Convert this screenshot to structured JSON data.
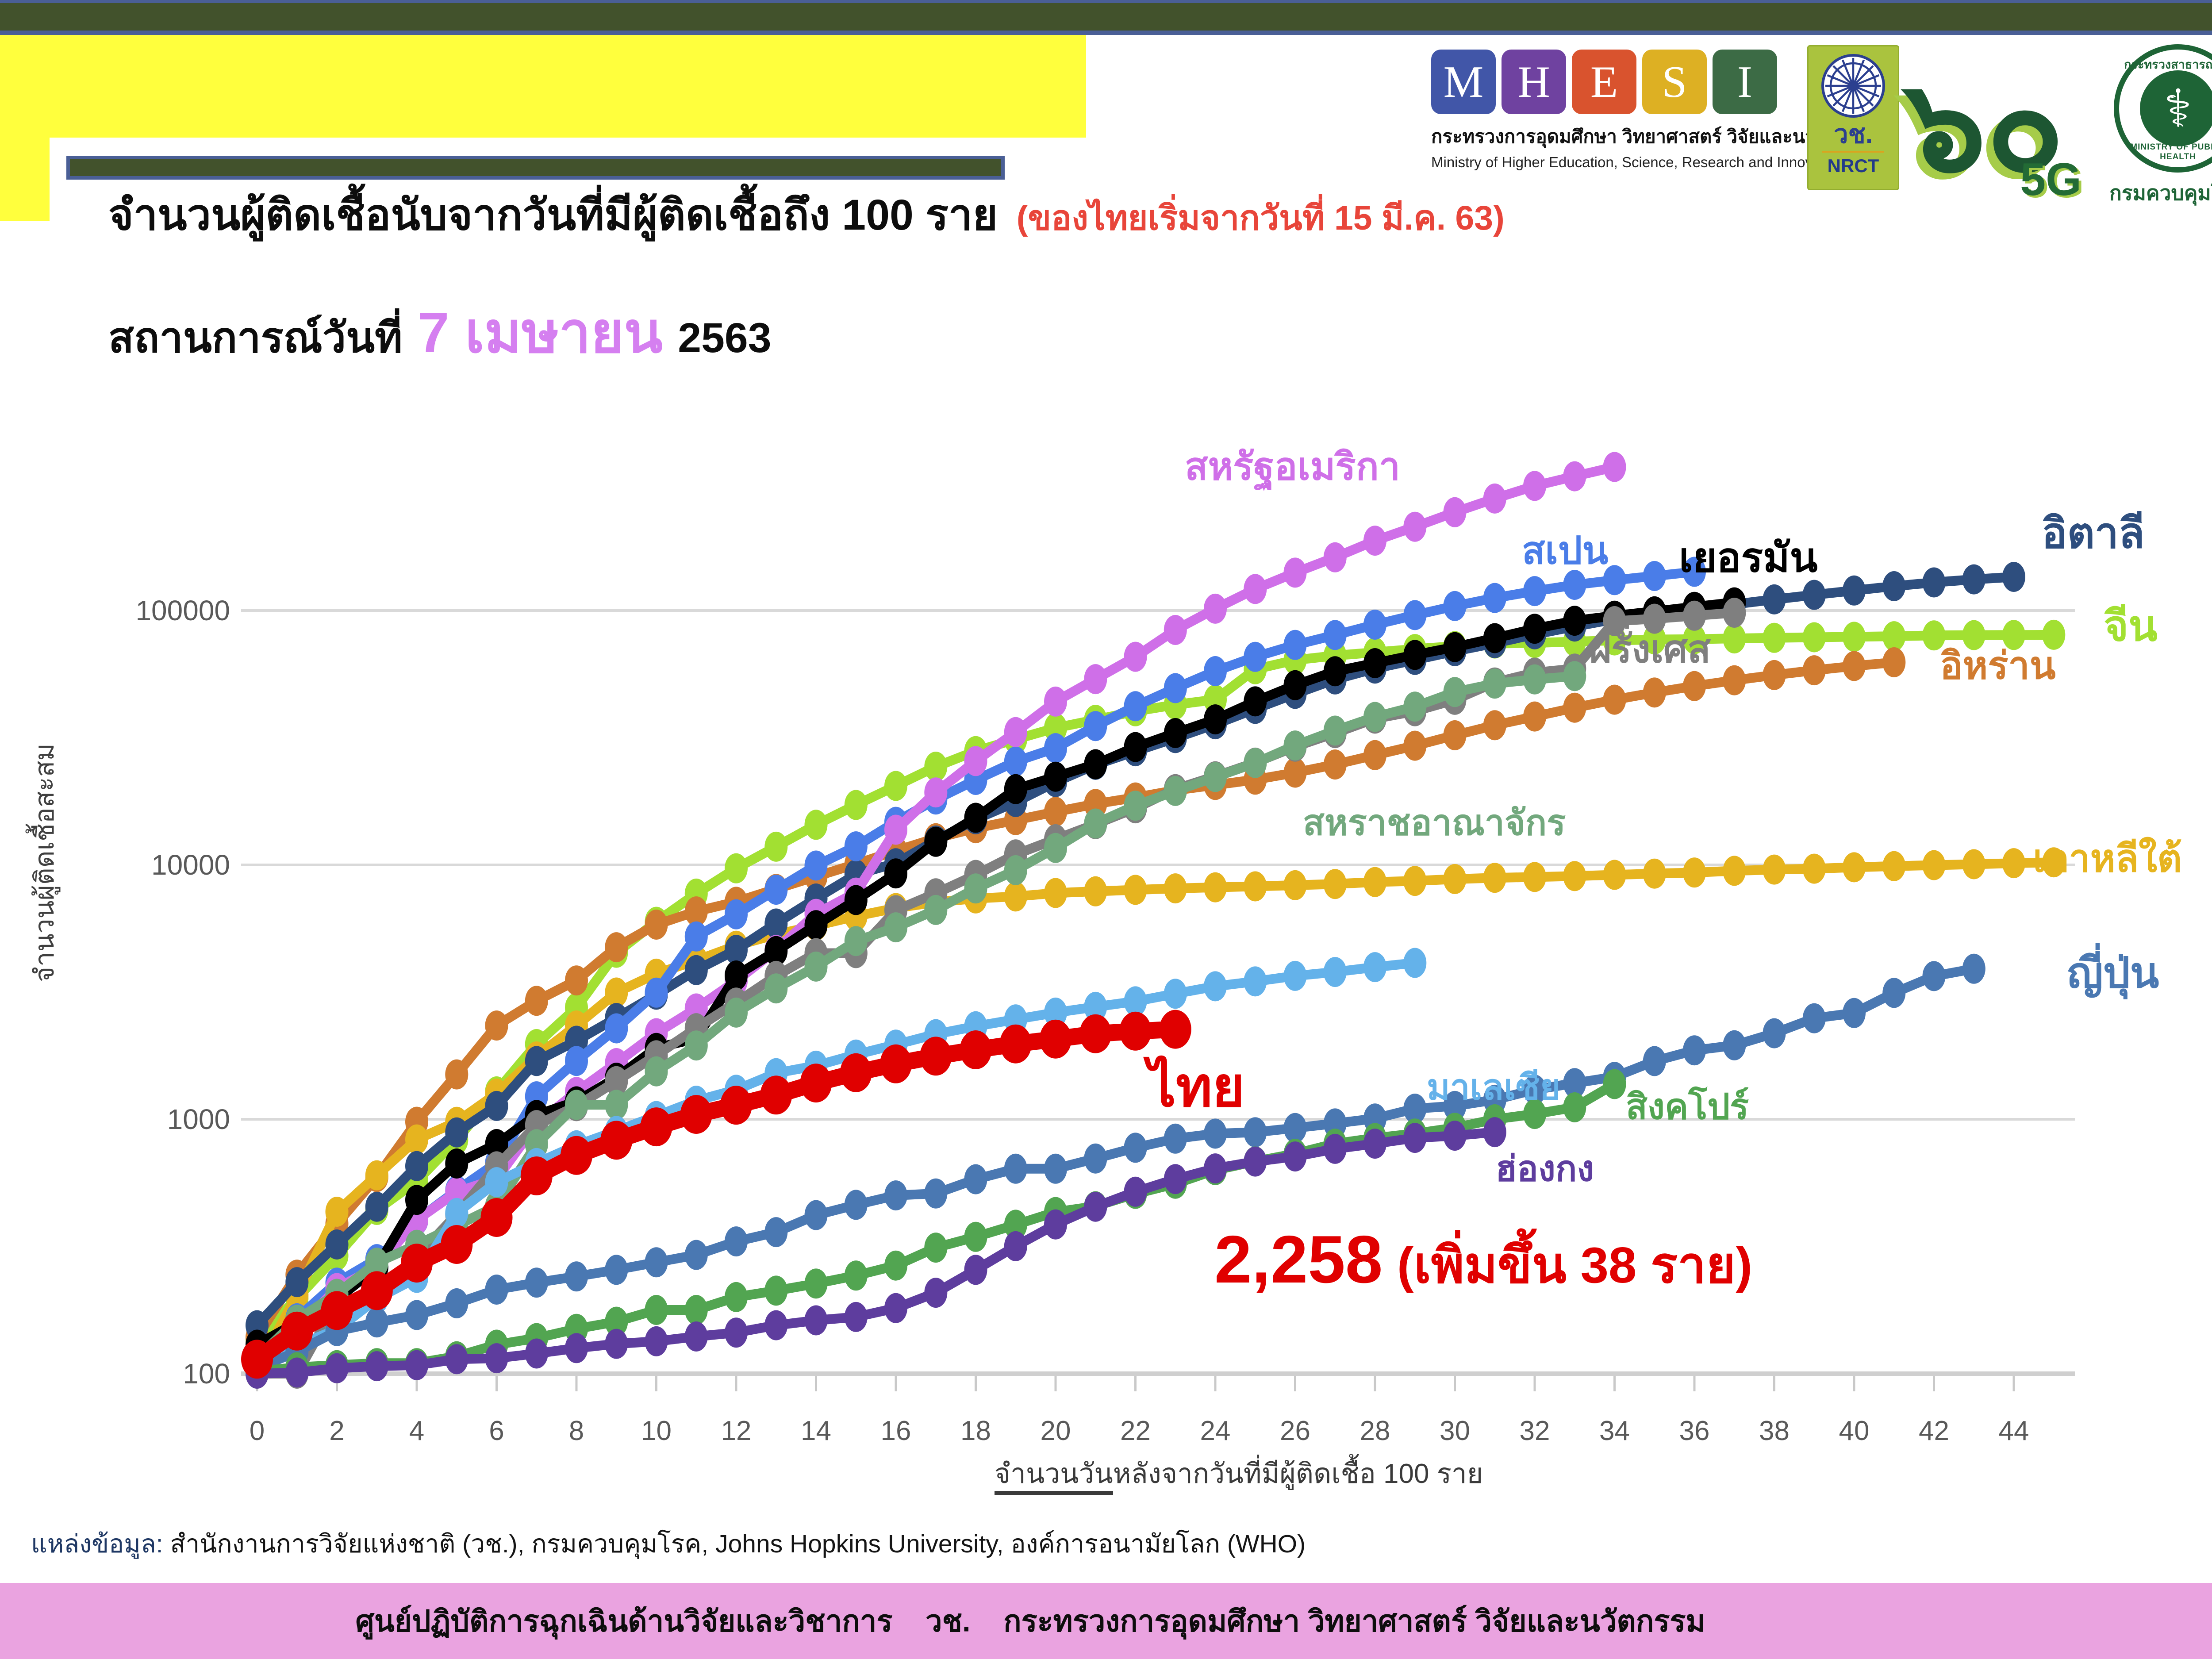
{
  "header": {
    "title": "จำนวนผู้ติดเชื้อนับจากวันที่มีผู้ติดเชื้อถึง 100 ราย",
    "title_note": "(ของไทยเริ่มจากวันที่ 15 มี.ค. 63)",
    "subtitle_prefix": "สถานการณ์วันที่",
    "subtitle_date": "7 เมษายน",
    "subtitle_year": "2563"
  },
  "logos": {
    "mhesi": {
      "letters": [
        {
          "ch": "M",
          "color": "#4156a8"
        },
        {
          "ch": "H",
          "color": "#6f42a0"
        },
        {
          "ch": "E",
          "color": "#d9532e"
        },
        {
          "ch": "S",
          "color": "#ddb023"
        },
        {
          "ch": "I",
          "color": "#3c6b45"
        }
      ],
      "line1": "กระทรวงการอุดมศึกษา วิทยาศาสตร์ วิจัยและนวัตกรรม",
      "line2": "Ministry of Higher Education, Science, Research and Innovation"
    },
    "nrct": {
      "abbr_th": "วช.",
      "abbr_en": "NRCT"
    },
    "logo60": {
      "numerals": "๖๐",
      "sub": "5G"
    },
    "moph": {
      "top": "กระทรวงสาธารณสุข",
      "symbol": "⚕",
      "bottom": "MINISTRY OF PUBLIC HEALTH",
      "dept": "กรมควบคุมโรค"
    }
  },
  "chart_data": {
    "type": "line",
    "y_scale": "log",
    "grid": true,
    "ylabel": "จำนวนผู้ติดเชื้อสะสม",
    "xlabel_underlined": "จำนวนวัน",
    "xlabel_rest": "หลังจากวันที่มีผู้ติดเชื้อ 100 ราย",
    "y_ticks": [
      100,
      1000,
      10000,
      100000
    ],
    "x_ticks": [
      0,
      2,
      4,
      6,
      8,
      10,
      12,
      14,
      16,
      18,
      20,
      22,
      24,
      26,
      28,
      30,
      32,
      34,
      36,
      38,
      40,
      42,
      44
    ],
    "x_range": [
      0,
      45.6
    ],
    "y_range": [
      100,
      450000
    ],
    "annotation": {
      "value": "2,258",
      "note": "(เพิ่มขึ้น 38 ราย)"
    },
    "series": [
      {
        "key": "china",
        "name": "จีน",
        "color": "#a2e032",
        "label_x": 4755,
        "label_y": 1368,
        "label_size": 96,
        "start_day": 0,
        "values": [
          136,
          198,
          291,
          440,
          571,
          830,
          1287,
          1975,
          2744,
          4515,
          5974,
          7711,
          9692,
          11791,
          14380,
          17205,
          20438,
          24324,
          28018,
          31161,
          34546,
          37198,
          40171,
          42638,
          44653,
          58761,
          63851,
          66492,
          68500,
          70548,
          72436,
          74185,
          74576,
          75465,
          76288,
          76936,
          77150,
          77658,
          78064,
          78497,
          78824,
          79251,
          79824,
          80026,
          80151,
          80270
        ]
      },
      {
        "key": "iran",
        "name": "อิหร่าน",
        "color": "#d07b30",
        "label_x": 4385,
        "label_y": 1462,
        "label_size": 86,
        "start_day": 0,
        "values": [
          139,
          245,
          388,
          593,
          978,
          1501,
          2336,
          2922,
          3513,
          4747,
          5823,
          6566,
          7161,
          8042,
          9000,
          10075,
          11364,
          12729,
          13938,
          14991,
          16169,
          17361,
          18407,
          19644,
          20610,
          21638,
          23049,
          24811,
          27017,
          29406,
          32332,
          35408,
          38309,
          41495,
          44605,
          47593,
          50468,
          53183,
          55743,
          58226,
          60500,
          62589
        ]
      },
      {
        "key": "korea",
        "name": "เกาหลีใต้",
        "color": "#e6b41f",
        "label_x": 4595,
        "label_y": 1898,
        "label_size": 86,
        "start_day": 0,
        "values": [
          104,
          204,
          433,
          602,
          833,
          977,
          1261,
          1766,
          2337,
          3150,
          3736,
          4212,
          4812,
          5328,
          5766,
          6284,
          6767,
          7134,
          7382,
          7513,
          7755,
          7869,
          7979,
          8086,
          8162,
          8236,
          8320,
          8413,
          8565,
          8652,
          8799,
          8897,
          8961,
          9037,
          9137,
          9241,
          9332,
          9478,
          9583,
          9661,
          9786,
          9887,
          9976,
          10062,
          10156,
          10237
        ]
      },
      {
        "key": "italy",
        "name": "อิตาลี",
        "color": "#2e4e7e",
        "label_x": 4615,
        "label_y": 1158,
        "label_size": 96,
        "start_day": 0,
        "values": [
          155,
          229,
          322,
          453,
          655,
          888,
          1128,
          1694,
          2036,
          2502,
          3089,
          3858,
          4636,
          5883,
          7375,
          9172,
          10149,
          12462,
          15113,
          17660,
          21157,
          24747,
          27980,
          31506,
          35713,
          41035,
          47021,
          53578,
          59138,
          63927,
          69176,
          74386,
          80589,
          86498,
          92472,
          97689,
          101739,
          105792,
          110574,
          115242,
          119827,
          124632,
          128948,
          132547,
          135586
        ]
      },
      {
        "key": "spain",
        "name": "สเปน",
        "color": "#4a7de8",
        "label_x": 3440,
        "label_y": 1202,
        "label_size": 86,
        "start_day": 0,
        "values": [
          120,
          165,
          228,
          282,
          401,
          525,
          674,
          1231,
          1695,
          2277,
          3146,
          5232,
          6391,
          7988,
          9942,
          11826,
          14769,
          18077,
          21571,
          25496,
          28768,
          35136,
          42058,
          49515,
          57786,
          65719,
          73235,
          80110,
          87956,
          95923,
          104118,
          112065,
          119199,
          126168,
          131646,
          136675,
          141942
        ]
      },
      {
        "key": "usa",
        "name": "สหรัฐอเมริกา",
        "color": "#cf6fe8",
        "label_x": 2678,
        "label_y": 1012,
        "label_size": 86,
        "start_day": 0,
        "values": [
          118,
          149,
          217,
          262,
          402,
          518,
          583,
          959,
          1281,
          1663,
          2179,
          2727,
          3499,
          4632,
          6421,
          7783,
          13747,
          19273,
          25600,
          33276,
          43847,
          53740,
          65778,
          83836,
          101657,
          121478,
          140886,
          161807,
          188172,
          213372,
          243453,
          275586,
          308850,
          337072,
          366667
        ]
      },
      {
        "key": "germany",
        "name": "เยอรมัน",
        "color": "#000000",
        "label_x": 3795,
        "label_y": 1215,
        "label_size": 92,
        "start_day": 0,
        "values": [
          130,
          159,
          196,
          262,
          482,
          670,
          799,
          1040,
          1176,
          1457,
          1908,
          2078,
          3675,
          4585,
          5795,
          7272,
          9257,
          12327,
          15320,
          19848,
          22213,
          24873,
          29056,
          32986,
          37323,
          43938,
          50871,
          57695,
          62095,
          66885,
          71808,
          77872,
          84794,
          91159,
          95391,
          99225,
          103374,
          107663
        ]
      },
      {
        "key": "france",
        "name": "ฝรั่งเศส",
        "color": "#7f7f7f",
        "label_x": 3592,
        "label_y": 1425,
        "label_size": 86,
        "start_day": 0,
        "values": [
          100,
          100,
          191,
          204,
          288,
          423,
          653,
          949,
          1126,
          1412,
          1784,
          2281,
          2876,
          3661,
          4499,
          4499,
          6633,
          7730,
          9134,
          10995,
          12612,
          14459,
          16689,
          19856,
          22304,
          25233,
          29155,
          32964,
          37575,
          40174,
          44550,
          52128,
          56989,
          59105,
          90848,
          92839,
          95403,
          98010
        ]
      },
      {
        "key": "uk",
        "name": "สหราชอาณาจักร",
        "color": "#72a87d",
        "label_x": 2945,
        "label_y": 1820,
        "label_size": 80,
        "start_day": 0,
        "values": [
          115,
          163,
          206,
          273,
          321,
          382,
          456,
          798,
          1140,
          1140,
          1543,
          1950,
          2626,
          3269,
          3983,
          5018,
          5683,
          6650,
          8077,
          9529,
          11658,
          14543,
          17089,
          19522,
          22141,
          25150,
          29474,
          33718,
          38168,
          41903,
          47806,
          51608,
          53607,
          55242
        ]
      },
      {
        "key": "malaysia",
        "name": "มาเลเซีย",
        "color": "#64b2ea",
        "label_x": 3225,
        "label_y": 2418,
        "label_size": 80,
        "start_day": 0,
        "values": [
          117,
          129,
          149,
          197,
          238,
          428,
          566,
          673,
          790,
          900,
          1030,
          1183,
          1306,
          1518,
          1624,
          1796,
          1966,
          2161,
          2320,
          2470,
          2626,
          2766,
          2908,
          3116,
          3333,
          3483,
          3662,
          3793,
          3963,
          4119
        ]
      },
      {
        "key": "japan",
        "name": "ญี่ปุ่น",
        "color": "#4a78b2",
        "label_x": 4672,
        "label_y": 2152,
        "label_size": 96,
        "start_day": 0,
        "values": [
          105,
          122,
          147,
          159,
          170,
          189,
          214,
          228,
          241,
          256,
          274,
          293,
          331,
          360,
          420,
          461,
          502,
          511,
          581,
          639,
          639,
          701,
          773,
          839,
          878,
          889,
          924,
          963,
          1007,
          1101,
          1128,
          1193,
          1307,
          1387,
          1468,
          1693,
          1866,
          1953,
          2178,
          2495,
          2617,
          3139,
          3654,
          3906
        ]
      },
      {
        "key": "singapore",
        "name": "สิงคโปร์",
        "color": "#52a551",
        "label_x": 3675,
        "label_y": 2462,
        "label_size": 80,
        "start_day": 0,
        "values": [
          102,
          106,
          108,
          110,
          110,
          117,
          130,
          138,
          150,
          160,
          178,
          178,
          200,
          212,
          226,
          243,
          266,
          313,
          345,
          385,
          432,
          455,
          509,
          558,
          631,
          683,
          732,
          802,
          844,
          879,
          926,
          1000,
          1049,
          1114,
          1375
        ]
      },
      {
        "key": "hongkong",
        "name": "ฮ่องกง",
        "color": "#5e3d9e",
        "label_x": 3380,
        "label_y": 2602,
        "label_size": 80,
        "start_day": 0,
        "values": [
          100,
          101,
          105,
          107,
          108,
          114,
          115,
          120,
          126,
          131,
          134,
          140,
          145,
          155,
          162,
          167,
          181,
          208,
          256,
          317,
          386,
          453,
          519,
          582,
          641,
          682,
          714,
          765,
          802,
          845,
          862,
          890
        ]
      },
      {
        "key": "thailand",
        "name": "ไทย",
        "color": "#e00000",
        "label_x": 2595,
        "label_y": 2395,
        "label_size": 125,
        "line_width": 38,
        "marker_rx": 36,
        "marker_ry": 44,
        "start_day": 0,
        "values": [
          114,
          147,
          177,
          212,
          272,
          322,
          411,
          599,
          721,
          827,
          934,
          1045,
          1136,
          1245,
          1388,
          1524,
          1651,
          1771,
          1875,
          1978,
          2067,
          2169,
          2220,
          2258
        ]
      }
    ]
  },
  "source": {
    "prefix": "แหล่งข้อมูล:",
    "text": " สำนักงานการวิจัยแห่งชาติ (วช.), กรมควบคุมโรค, Johns Hopkins University, องค์การอนามัยโลก (WHO)"
  },
  "footer": {
    "text": "ศูนย์ปฏิบัติการฉุกเฉินด้านวิจัยและวิชาการ    วช.    กระทรวงการอุดมศึกษา วิทยาศาสตร์ วิจัยและนวัตกรรม"
  }
}
